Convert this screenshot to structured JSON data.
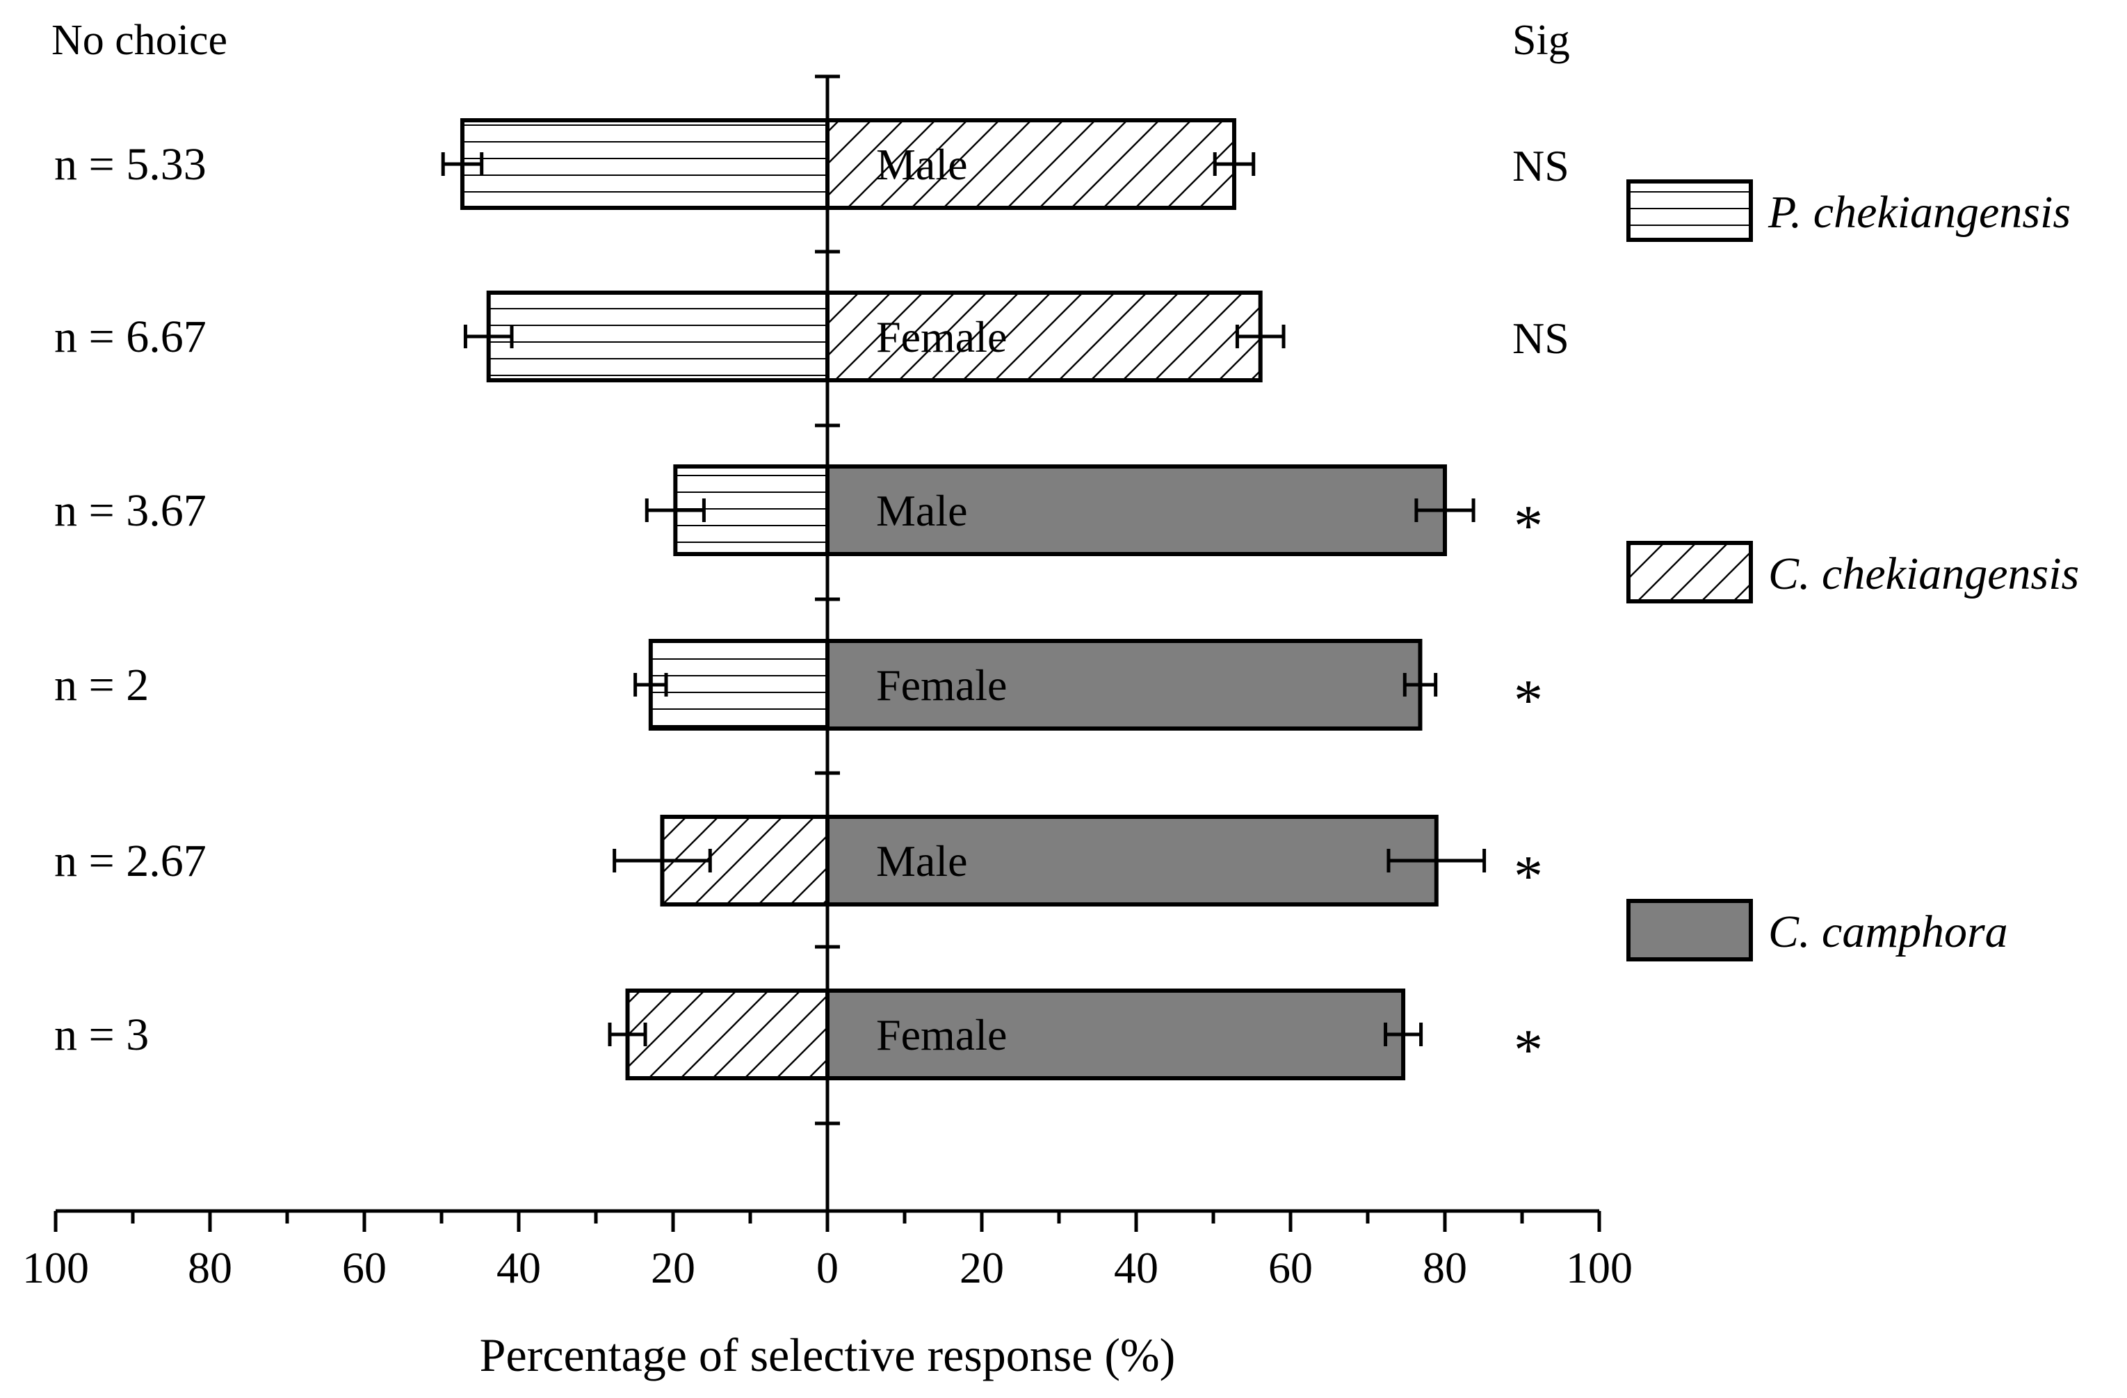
{
  "chart_data": {
    "type": "bar",
    "orientation": "horizontal-diverging",
    "title": "",
    "xlabel": "Percentage of selective response (%)",
    "ylabel": "",
    "corner_labels": {
      "left": "No choice",
      "right": "Sig"
    },
    "xlim": [
      -100,
      100
    ],
    "x_ticks": [
      100,
      80,
      60,
      40,
      20,
      0,
      20,
      40,
      60,
      80,
      100
    ],
    "grid": false,
    "legend_position": "right",
    "legend": [
      {
        "name": "P. chekiangensis",
        "pattern": "horizontal-lines"
      },
      {
        "name": "C. chekiangensis",
        "pattern": "diagonal-hatch"
      },
      {
        "name": "C. camphora",
        "pattern": "solid-gray"
      }
    ],
    "colors": {
      "solid_gray": "#7f7f7f",
      "stroke": "#000000",
      "background": "#ffffff"
    },
    "rows": [
      {
        "no_choice": "n = 5.33",
        "sex": "Male",
        "left_value": 47.3,
        "left_err": 2.5,
        "left_pattern": "horizontal-lines",
        "right_value": 52.7,
        "right_err": 2.5,
        "right_pattern": "diagonal-hatch",
        "sig": "NS"
      },
      {
        "no_choice": "n = 6.67",
        "sex": "Female",
        "left_value": 43.9,
        "left_err": 3.0,
        "left_pattern": "horizontal-lines",
        "right_value": 56.1,
        "right_err": 3.0,
        "right_pattern": "diagonal-hatch",
        "sig": "NS"
      },
      {
        "no_choice": "n = 3.67",
        "sex": "Male",
        "left_value": 19.7,
        "left_err": 3.7,
        "left_pattern": "horizontal-lines",
        "right_value": 80.0,
        "right_err": 3.7,
        "right_pattern": "solid-gray",
        "sig": "*"
      },
      {
        "no_choice": "n = 2",
        "sex": "Female",
        "left_value": 22.9,
        "left_err": 2.0,
        "left_pattern": "horizontal-lines",
        "right_value": 76.8,
        "right_err": 2.0,
        "right_pattern": "solid-gray",
        "sig": "*"
      },
      {
        "no_choice": "n = 2.67",
        "sex": "Male",
        "left_value": 21.4,
        "left_err": 6.2,
        "left_pattern": "diagonal-hatch",
        "right_value": 78.9,
        "right_err": 6.2,
        "right_pattern": "solid-gray",
        "sig": "*"
      },
      {
        "no_choice": "n = 3",
        "sex": "Female",
        "left_value": 25.9,
        "left_err": 2.3,
        "left_pattern": "diagonal-hatch",
        "right_value": 74.6,
        "right_err": 2.3,
        "right_pattern": "solid-gray",
        "sig": "*"
      }
    ]
  }
}
